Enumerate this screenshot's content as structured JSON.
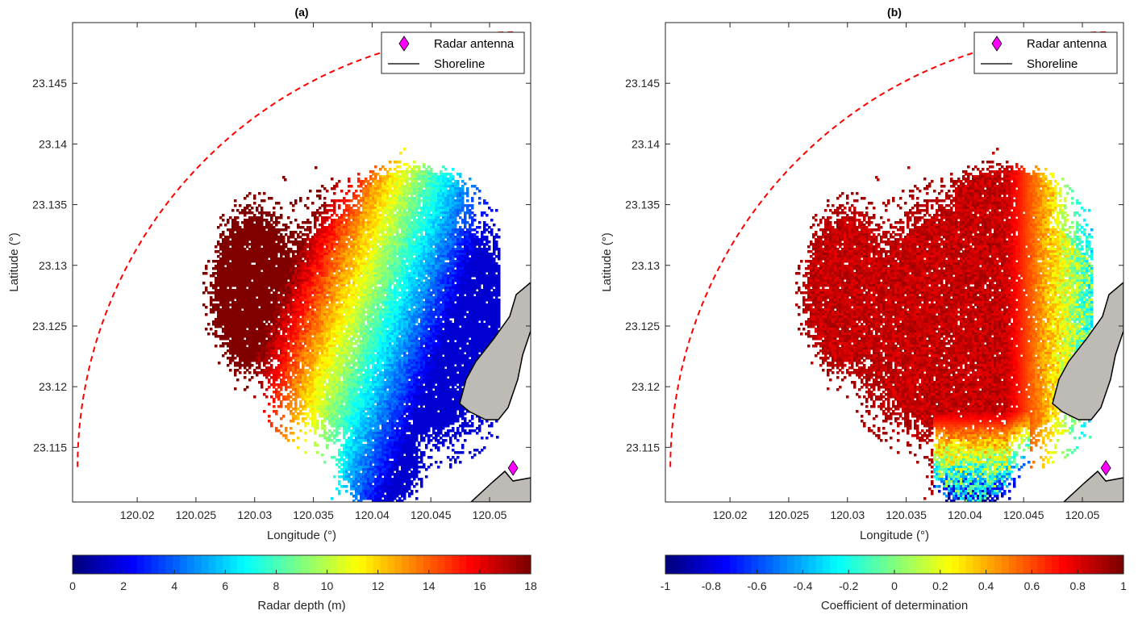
{
  "chart_data": [
    {
      "type": "heatmap",
      "title": "(a)",
      "xlabel": "Longitude (°)",
      "ylabel": "Latitude (°)",
      "xlim": [
        120.0145,
        120.0535
      ],
      "ylim": [
        23.1105,
        23.15
      ],
      "x_ticks": [
        "120.02",
        "120.025",
        "120.03",
        "120.035",
        "120.04",
        "120.045",
        "120.05"
      ],
      "y_ticks": [
        "23.115",
        "23.12",
        "23.125",
        "23.13",
        "23.135",
        "23.14",
        "23.145"
      ],
      "colorbar": {
        "label": "Radar depth (m)",
        "range": [
          0,
          18
        ],
        "ticks": [
          "0",
          "2",
          "4",
          "6",
          "8",
          "10",
          "12",
          "14",
          "16",
          "18"
        ],
        "colormap": "jet"
      },
      "field": "depth",
      "legend": {
        "position": "top-right",
        "entries": [
          "Radar antenna",
          "Shoreline"
        ]
      }
    },
    {
      "type": "heatmap",
      "title": "(b)",
      "xlabel": "Longitude (°)",
      "ylabel": "Latitude (°)",
      "xlim": [
        120.0145,
        120.0535
      ],
      "ylim": [
        23.1105,
        23.15
      ],
      "x_ticks": [
        "120.02",
        "120.025",
        "120.03",
        "120.035",
        "120.04",
        "120.045",
        "120.05"
      ],
      "y_ticks": [
        "23.115",
        "23.12",
        "23.125",
        "23.13",
        "23.135",
        "23.14",
        "23.145"
      ],
      "colorbar": {
        "label": "Coefficient of determination",
        "range": [
          -1,
          1
        ],
        "ticks": [
          "-1",
          "-0.8",
          "-0.6",
          "-0.4",
          "-0.2",
          "0",
          "0.2",
          "0.4",
          "0.6",
          "0.8",
          "1"
        ],
        "colormap": "jet"
      },
      "field": "r2",
      "legend": {
        "position": "top-right",
        "entries": [
          "Radar antenna",
          "Shoreline"
        ]
      }
    }
  ],
  "radar_antenna": {
    "lon": 120.052,
    "lat": 23.1133
  },
  "colors": {
    "range_circle": "#ff0000",
    "antenna_marker": "#ff00ff",
    "land": "#bebab6",
    "shoreline": "#000000"
  }
}
